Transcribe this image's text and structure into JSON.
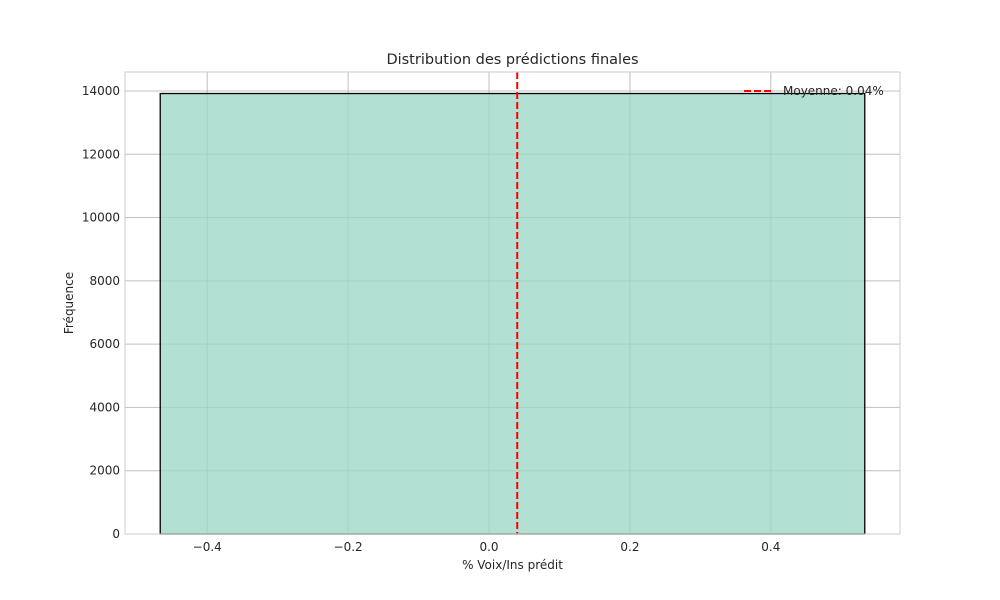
{
  "chart_data": {
    "type": "bar",
    "title": "Distribution des prédictions finales",
    "xlabel": "% Voix/Ins prédit",
    "ylabel": "Fréquence",
    "xlim": [
      -0.5167,
      0.5833
    ],
    "ylim": [
      0,
      14600
    ],
    "x_ticks": [
      -0.4,
      -0.2,
      0.0,
      0.2,
      0.4
    ],
    "x_tick_labels": [
      "−0.4",
      "−0.2",
      "0.0",
      "0.2",
      "0.4"
    ],
    "y_ticks": [
      0,
      2000,
      4000,
      6000,
      8000,
      10000,
      12000,
      14000
    ],
    "y_tick_labels": [
      "0",
      "2000",
      "4000",
      "6000",
      "8000",
      "10000",
      "12000",
      "14000"
    ],
    "bins": [
      {
        "x_start": -0.4667,
        "x_end": 0.5333,
        "count": 13920
      }
    ],
    "mean_line": {
      "x": 0.04,
      "label": "Moyenne: 0.04%",
      "color": "#ff0000",
      "style": "dashed"
    },
    "grid": true,
    "legend_position": "upper right",
    "colors": {
      "bar_fill": "#b2e0d2",
      "bar_edge": "#000000",
      "grid": "#cccccc",
      "spine": "#cccccc"
    }
  }
}
